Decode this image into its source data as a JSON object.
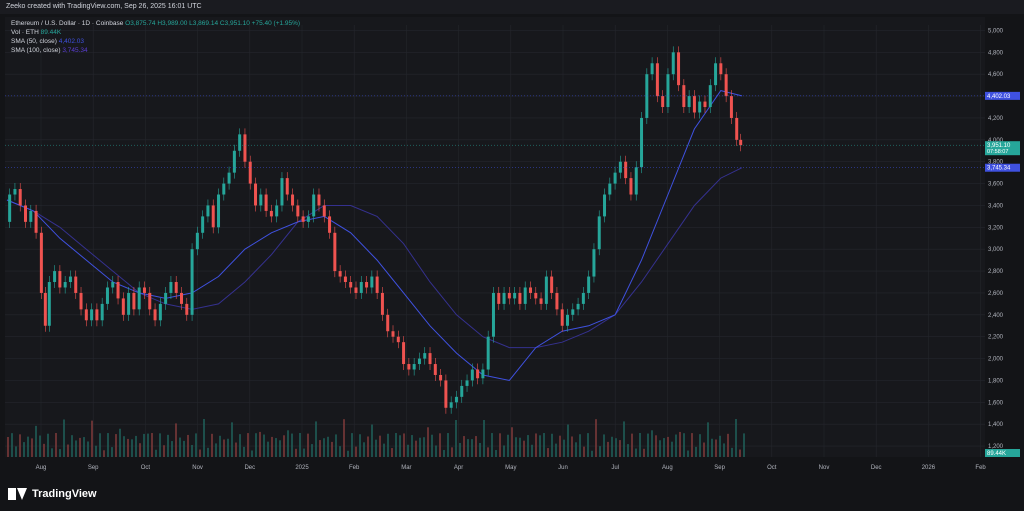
{
  "header": {
    "title": "Zeeko created with TradingView.com, Sep 26, 2025 16:01 UTC"
  },
  "legend": {
    "symbol": "Ethereum / U.S. Dollar · 1D · Coinbase",
    "ohlc": "O3,875.74 H3,989.00 L3,869.14 C3,951.10 +75.40 (+1.95%)",
    "vol_label": "Vol · ETH",
    "vol_value": "89.44K",
    "sma50_label": "SMA (50, close)",
    "sma50_value": "4,402.03",
    "sma100_label": "SMA (100, close)",
    "sma100_value": "3,745.34"
  },
  "footer": {
    "brand": "TradingView"
  },
  "colors": {
    "up": "#26a69a",
    "down": "#ef5350",
    "sma50": "#3f51e0",
    "sma100": "#35318f",
    "background": "#17181c",
    "grid": "#24262c"
  },
  "chart_data": {
    "type": "line",
    "title": "",
    "yticks": [
      1200,
      1400,
      1600,
      1800,
      2000,
      2200,
      2400,
      2600,
      2800,
      3000,
      3200,
      3400,
      3600,
      3800,
      4000,
      4200,
      4400,
      4600,
      4800,
      5000
    ],
    "ylim": [
      1100,
      5050
    ],
    "x_labels": [
      "Aug",
      "Sep",
      "Oct",
      "Nov",
      "Dec",
      "2025",
      "Feb",
      "Mar",
      "Apr",
      "May",
      "Jun",
      "Jul",
      "Aug",
      "Sep",
      "Oct",
      "Nov",
      "Dec",
      "2026",
      "Feb"
    ],
    "price_labels": [
      {
        "label": "4,402.03",
        "value": 4402,
        "color": "#3f51e0"
      },
      {
        "label": "3,951.10",
        "value": 3951,
        "color": "#26a69a",
        "sub": "07:58:07"
      },
      {
        "label": "3,745.34",
        "value": 3745,
        "color": "#3f51e0"
      }
    ],
    "volume_label": {
      "label": "89.44K",
      "color": "#26a69a"
    },
    "price_path": [
      [
        0,
        3250
      ],
      [
        4,
        3500
      ],
      [
        8,
        3550
      ],
      [
        12,
        3400
      ],
      [
        16,
        3250
      ],
      [
        20,
        3350
      ],
      [
        24,
        3150
      ],
      [
        28,
        2600
      ],
      [
        30,
        2300
      ],
      [
        34,
        2700
      ],
      [
        38,
        2800
      ],
      [
        42,
        2650
      ],
      [
        46,
        2700
      ],
      [
        50,
        2750
      ],
      [
        54,
        2600
      ],
      [
        58,
        2450
      ],
      [
        62,
        2350
      ],
      [
        66,
        2450
      ],
      [
        70,
        2350
      ],
      [
        74,
        2500
      ],
      [
        78,
        2650
      ],
      [
        82,
        2700
      ],
      [
        86,
        2550
      ],
      [
        90,
        2400
      ],
      [
        94,
        2600
      ],
      [
        98,
        2450
      ],
      [
        102,
        2650
      ],
      [
        106,
        2600
      ],
      [
        110,
        2450
      ],
      [
        114,
        2350
      ],
      [
        118,
        2500
      ],
      [
        122,
        2600
      ],
      [
        126,
        2700
      ],
      [
        130,
        2600
      ],
      [
        134,
        2500
      ],
      [
        138,
        2400
      ],
      [
        142,
        3000
      ],
      [
        146,
        3150
      ],
      [
        150,
        3300
      ],
      [
        154,
        3400
      ],
      [
        158,
        3200
      ],
      [
        162,
        3500
      ],
      [
        166,
        3600
      ],
      [
        170,
        3700
      ],
      [
        174,
        3900
      ],
      [
        178,
        4050
      ],
      [
        182,
        3800
      ],
      [
        186,
        3600
      ],
      [
        190,
        3400
      ],
      [
        194,
        3500
      ],
      [
        198,
        3350
      ],
      [
        202,
        3300
      ],
      [
        206,
        3400
      ],
      [
        210,
        3650
      ],
      [
        214,
        3500
      ],
      [
        218,
        3400
      ],
      [
        222,
        3300
      ],
      [
        226,
        3250
      ],
      [
        230,
        3300
      ],
      [
        234,
        3500
      ],
      [
        238,
        3400
      ],
      [
        242,
        3300
      ],
      [
        246,
        3150
      ],
      [
        250,
        2800
      ],
      [
        254,
        2750
      ],
      [
        258,
        2700
      ],
      [
        262,
        2650
      ],
      [
        266,
        2600
      ],
      [
        270,
        2700
      ],
      [
        274,
        2650
      ],
      [
        278,
        2750
      ],
      [
        282,
        2600
      ],
      [
        286,
        2400
      ],
      [
        290,
        2250
      ],
      [
        294,
        2200
      ],
      [
        298,
        2150
      ],
      [
        302,
        1950
      ],
      [
        306,
        1900
      ],
      [
        310,
        1950
      ],
      [
        314,
        2000
      ],
      [
        318,
        2050
      ],
      [
        322,
        1950
      ],
      [
        326,
        1850
      ],
      [
        330,
        1800
      ],
      [
        334,
        1550
      ],
      [
        338,
        1600
      ],
      [
        342,
        1650
      ],
      [
        346,
        1750
      ],
      [
        350,
        1800
      ],
      [
        354,
        1900
      ],
      [
        358,
        1820
      ],
      [
        362,
        1900
      ],
      [
        366,
        2200
      ],
      [
        370,
        2600
      ],
      [
        374,
        2500
      ],
      [
        378,
        2600
      ],
      [
        382,
        2550
      ],
      [
        386,
        2600
      ],
      [
        390,
        2500
      ],
      [
        394,
        2650
      ],
      [
        398,
        2600
      ],
      [
        402,
        2550
      ],
      [
        406,
        2500
      ],
      [
        410,
        2750
      ],
      [
        414,
        2600
      ],
      [
        418,
        2450
      ],
      [
        422,
        2300
      ],
      [
        426,
        2400
      ],
      [
        430,
        2450
      ],
      [
        434,
        2500
      ],
      [
        438,
        2600
      ],
      [
        442,
        2750
      ],
      [
        446,
        3000
      ],
      [
        450,
        3300
      ],
      [
        454,
        3500
      ],
      [
        458,
        3600
      ],
      [
        462,
        3700
      ],
      [
        466,
        3800
      ],
      [
        470,
        3650
      ],
      [
        474,
        3500
      ],
      [
        478,
        3750
      ],
      [
        482,
        4200
      ],
      [
        486,
        4600
      ],
      [
        490,
        4700
      ],
      [
        494,
        4400
      ],
      [
        498,
        4300
      ],
      [
        502,
        4600
      ],
      [
        506,
        4800
      ],
      [
        510,
        4500
      ],
      [
        514,
        4300
      ],
      [
        518,
        4400
      ],
      [
        522,
        4250
      ],
      [
        526,
        4350
      ],
      [
        530,
        4300
      ],
      [
        534,
        4500
      ],
      [
        538,
        4700
      ],
      [
        542,
        4600
      ],
      [
        546,
        4400
      ],
      [
        550,
        4200
      ],
      [
        554,
        4000
      ],
      [
        556,
        3951
      ]
    ],
    "sma50_path": [
      [
        0,
        3450
      ],
      [
        20,
        3350
      ],
      [
        40,
        3100
      ],
      [
        60,
        2900
      ],
      [
        80,
        2700
      ],
      [
        100,
        2600
      ],
      [
        120,
        2550
      ],
      [
        140,
        2600
      ],
      [
        160,
        2750
      ],
      [
        180,
        3000
      ],
      [
        200,
        3150
      ],
      [
        220,
        3250
      ],
      [
        240,
        3300
      ],
      [
        260,
        3150
      ],
      [
        280,
        2900
      ],
      [
        300,
        2600
      ],
      [
        320,
        2300
      ],
      [
        340,
        2050
      ],
      [
        360,
        1850
      ],
      [
        380,
        1800
      ],
      [
        400,
        2100
      ],
      [
        420,
        2250
      ],
      [
        440,
        2300
      ],
      [
        460,
        2400
      ],
      [
        480,
        2900
      ],
      [
        500,
        3500
      ],
      [
        520,
        4100
      ],
      [
        540,
        4450
      ],
      [
        556,
        4402
      ]
    ],
    "sma100_path": [
      [
        0,
        3450
      ],
      [
        20,
        3350
      ],
      [
        40,
        3200
      ],
      [
        60,
        3000
      ],
      [
        80,
        2800
      ],
      [
        100,
        2600
      ],
      [
        120,
        2500
      ],
      [
        140,
        2450
      ],
      [
        160,
        2500
      ],
      [
        180,
        2700
      ],
      [
        200,
        2950
      ],
      [
        220,
        3250
      ],
      [
        240,
        3400
      ],
      [
        260,
        3400
      ],
      [
        280,
        3300
      ],
      [
        300,
        3050
      ],
      [
        320,
        2700
      ],
      [
        340,
        2400
      ],
      [
        360,
        2200
      ],
      [
        380,
        2100
      ],
      [
        400,
        2100
      ],
      [
        420,
        2150
      ],
      [
        440,
        2250
      ],
      [
        460,
        2400
      ],
      [
        480,
        2700
      ],
      [
        500,
        3050
      ],
      [
        520,
        3400
      ],
      [
        540,
        3650
      ],
      [
        556,
        3745
      ]
    ]
  }
}
